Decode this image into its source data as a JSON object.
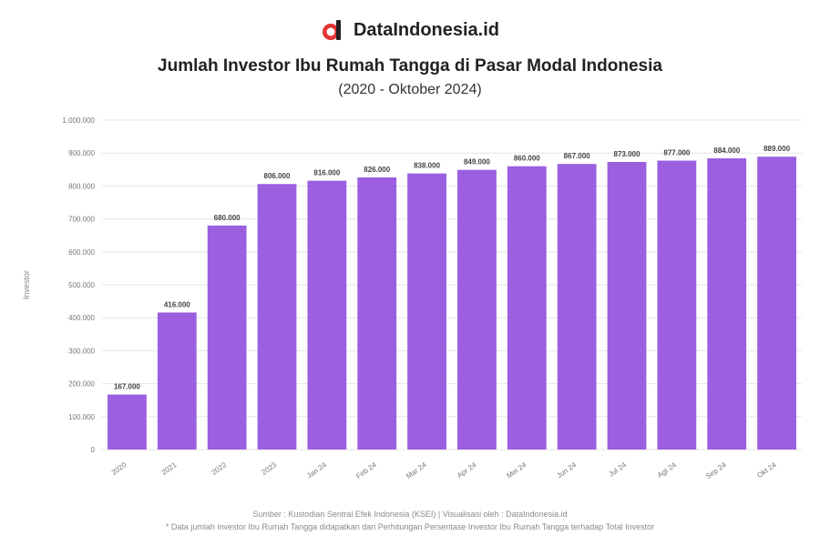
{
  "brand": {
    "name": "DataIndonesia.id",
    "logo_icon": "dataindonesia-logo-icon",
    "logo_color": "#e63333"
  },
  "header": {
    "title": "Jumlah Investor Ibu Rumah Tangga di Pasar Modal Indonesia",
    "subtitle": "(2020 - Oktober 2024)"
  },
  "chart_data": {
    "type": "bar",
    "ylabel": "Investor",
    "ylim": [
      0,
      1000000
    ],
    "yticks": [
      0,
      100000,
      200000,
      300000,
      400000,
      500000,
      600000,
      700000,
      800000,
      900000,
      1000000
    ],
    "ytick_labels": [
      "0",
      "100.000",
      "200.000",
      "300.000",
      "400.000",
      "500.000",
      "600.000",
      "700.000",
      "800.000",
      "900.000",
      "1.000.000"
    ],
    "grid": true,
    "bar_color": "#9b5fe0",
    "categories": [
      "2020",
      "2021",
      "2022",
      "2023",
      "Jan 24",
      "Feb 24",
      "Mar 24",
      "Apr 24",
      "Mei 24",
      "Jun 24",
      "Jul 24",
      "Agt 24",
      "Sep 24",
      "Okt 24"
    ],
    "values": [
      167000,
      416000,
      680000,
      806000,
      816000,
      826000,
      838000,
      849000,
      860000,
      867000,
      873000,
      877000,
      884000,
      889000
    ],
    "value_labels": [
      "167.000",
      "416.000",
      "680.000",
      "806.000",
      "816.000",
      "826.000",
      "838.000",
      "849.000",
      "860.000",
      "867.000",
      "873.000",
      "877.000",
      "884.000",
      "889.000"
    ]
  },
  "footer": {
    "source": "Sumber : Kustodian Sentral Efek Indonesia (KSEI) | Visualisasi oleh : DataIndonesia.id",
    "note": "* Data jumlah investor Ibu Rumah Tangga didapatkan dari Perhitungan Persentase Investor Ibu Rumah Tangga terhadap Total Investor"
  }
}
